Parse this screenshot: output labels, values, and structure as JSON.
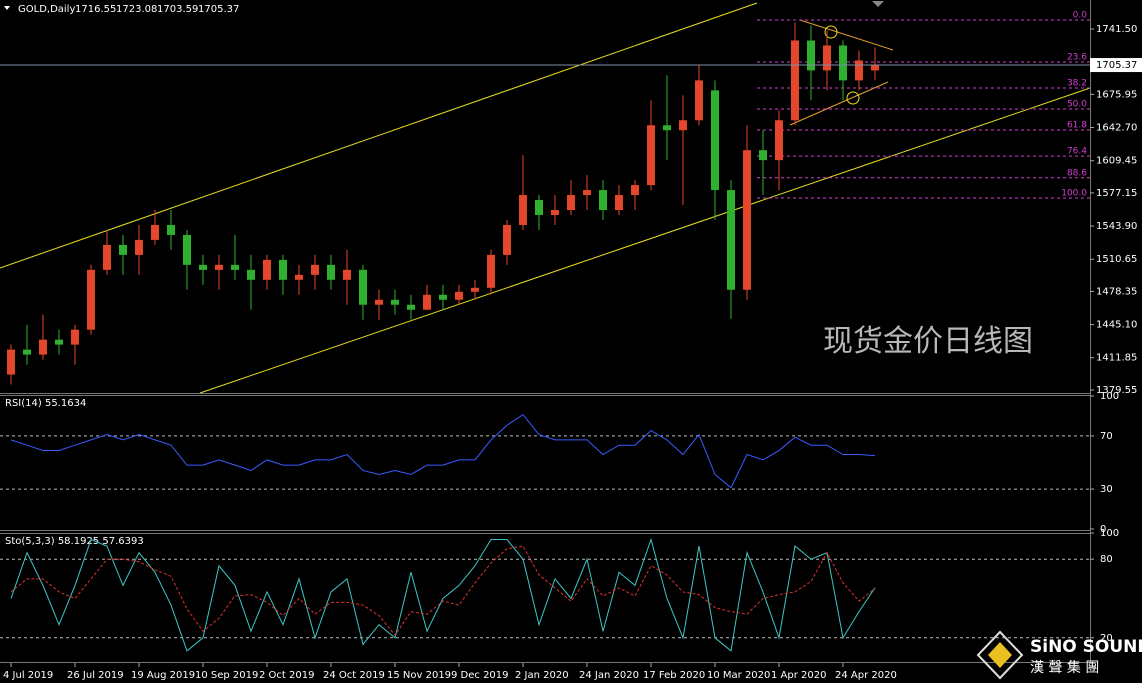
{
  "chart_data": [
    {
      "type": "candlestick",
      "title": "GOLD,Daily",
      "ohlc_header": [
        1716.55,
        1723.08,
        1703.59,
        1705.37
      ],
      "categories": [
        "4 Jul 2019",
        null,
        null,
        null,
        "26 Jul 2019",
        null,
        null,
        null,
        "19 Aug 2019",
        null,
        null,
        null,
        "10 Sep 2019",
        null,
        null,
        null,
        "2 Oct 2019",
        null,
        null,
        null,
        "24 Oct 2019",
        null,
        null,
        null,
        "15 Nov 2019",
        null,
        null,
        null,
        "9 Dec 2019",
        null,
        null,
        null,
        "2 Jan 2020",
        null,
        null,
        null,
        "24 Jan 2020",
        null,
        null,
        null,
        "17 Feb 2020",
        null,
        null,
        null,
        "10 Mar 2020",
        null,
        null,
        null,
        "1 Apr 2020",
        null,
        null,
        null,
        "24 Apr 2020",
        null,
        null
      ],
      "open": [
        1395,
        1420,
        1415,
        1430,
        1425,
        1440,
        1500,
        1525,
        1515,
        1530,
        1545,
        1535,
        1505,
        1500,
        1505,
        1500,
        1490,
        1510,
        1490,
        1495,
        1505,
        1490,
        1500,
        1465,
        1470,
        1465,
        1460,
        1475,
        1470,
        1478,
        1482,
        1515,
        1545,
        1570,
        1555,
        1560,
        1575,
        1580,
        1560,
        1575,
        1585,
        1645,
        1640,
        1650,
        1680,
        1580,
        1480,
        1620,
        1610,
        1650,
        1730,
        1700,
        1725,
        1690,
        1700
      ],
      "high": [
        1425,
        1445,
        1455,
        1440,
        1445,
        1505,
        1540,
        1535,
        1545,
        1560,
        1560,
        1540,
        1515,
        1515,
        1535,
        1515,
        1515,
        1515,
        1505,
        1515,
        1515,
        1520,
        1505,
        1480,
        1480,
        1475,
        1485,
        1485,
        1485,
        1490,
        1520,
        1550,
        1615,
        1575,
        1575,
        1590,
        1595,
        1590,
        1585,
        1590,
        1670,
        1695,
        1675,
        1705,
        1690,
        1590,
        1645,
        1640,
        1660,
        1748,
        1745,
        1740,
        1730,
        1720,
        1723.08
      ],
      "low": [
        1385,
        1405,
        1410,
        1415,
        1405,
        1435,
        1495,
        1495,
        1495,
        1525,
        1520,
        1480,
        1485,
        1480,
        1490,
        1460,
        1480,
        1475,
        1475,
        1480,
        1480,
        1465,
        1450,
        1450,
        1455,
        1450,
        1460,
        1460,
        1465,
        1470,
        1475,
        1505,
        1540,
        1540,
        1545,
        1555,
        1560,
        1550,
        1555,
        1560,
        1580,
        1610,
        1565,
        1645,
        1550,
        1451,
        1470,
        1575,
        1580,
        1645,
        1670,
        1680,
        1670,
        1680,
        1690
      ],
      "close": [
        1420,
        1415,
        1430,
        1425,
        1440,
        1500,
        1525,
        1515,
        1530,
        1545,
        1535,
        1505,
        1500,
        1505,
        1500,
        1490,
        1510,
        1490,
        1495,
        1505,
        1490,
        1500,
        1465,
        1470,
        1465,
        1460,
        1475,
        1470,
        1478,
        1482,
        1515,
        1545,
        1575,
        1555,
        1560,
        1575,
        1580,
        1560,
        1575,
        1585,
        1645,
        1640,
        1650,
        1690,
        1580,
        1480,
        1620,
        1610,
        1650,
        1730,
        1700,
        1725,
        1690,
        1710,
        1705.37
      ],
      "up_color": "#e5472d",
      "down_color": "#2fb02f",
      "ylim": [
        1376.5,
        1770.6
      ],
      "yticks": [
        {
          "value": 1741.5,
          "label": "1741.50"
        },
        {
          "value": 1675.95,
          "label": "1675.95"
        },
        {
          "value": 1642.7,
          "label": "1642.70"
        },
        {
          "value": 1609.45,
          "label": "1609.45"
        },
        {
          "value": 1577.15,
          "label": "1577.15"
        },
        {
          "value": 1543.9,
          "label": "1543.90"
        },
        {
          "value": 1510.65,
          "label": "1510.65"
        },
        {
          "value": 1478.35,
          "label": "1478.35"
        },
        {
          "value": 1445.1,
          "label": "1445.10"
        },
        {
          "value": 1411.85,
          "label": "1411.85"
        },
        {
          "value": 1379.55,
          "label": "1379.55"
        }
      ],
      "current_price": 1705.37,
      "fib": {
        "labels": [
          "0.0",
          "23.6",
          "38.2",
          "50.0",
          "61.8",
          "76.4",
          "88.6",
          "100.0"
        ],
        "prices": [
          1750.5,
          1708.4,
          1682.3,
          1661.3,
          1640.2,
          1614.1,
          1592.3,
          1572
        ],
        "color": "#d040d0"
      },
      "annotation": "现货金价日线图"
    },
    {
      "type": "line",
      "title": "RSI(14) 55.1634",
      "color": "#3a5cff",
      "values": [
        67,
        63,
        59,
        59,
        63,
        67,
        71,
        67,
        71,
        67,
        63,
        48,
        48,
        52,
        48,
        44,
        52,
        48,
        48,
        52,
        52,
        56,
        44,
        41,
        44,
        41,
        48,
        48,
        52,
        52,
        67,
        78,
        86,
        71,
        67,
        67,
        67,
        56,
        63,
        63,
        74,
        67,
        56,
        71,
        41,
        31,
        56,
        52,
        59,
        69,
        63,
        63,
        56,
        56,
        55.16
      ],
      "ylim": [
        0,
        100
      ],
      "yticks": [
        0,
        30,
        70,
        100
      ],
      "levels": [
        30,
        70
      ]
    },
    {
      "type": "line",
      "title": "Sto(5,3,3) 58.1925 57.6393",
      "series": [
        {
          "color": "#3cc8c8",
          "dashed": false,
          "values": [
            50,
            85,
            60,
            30,
            60,
            95,
            90,
            60,
            85,
            70,
            45,
            10,
            20,
            75,
            60,
            25,
            55,
            30,
            65,
            20,
            55,
            65,
            15,
            30,
            20,
            70,
            25,
            50,
            60,
            75,
            95,
            95,
            80,
            30,
            65,
            50,
            80,
            25,
            70,
            60,
            95,
            50,
            20,
            90,
            20,
            10,
            85,
            55,
            20,
            90,
            80,
            85,
            20,
            40,
            58.19
          ]
        },
        {
          "color": "#e03030",
          "dashed": true,
          "values": [
            55,
            65,
            65,
            55,
            50,
            65,
            80,
            80,
            78,
            72,
            67,
            42,
            25,
            35,
            52,
            53,
            47,
            37,
            50,
            38,
            47,
            47,
            45,
            37,
            22,
            40,
            38,
            48,
            45,
            62,
            77,
            88,
            90,
            68,
            58,
            48,
            65,
            52,
            58,
            52,
            75,
            68,
            55,
            53,
            43,
            40,
            38,
            50,
            53,
            55,
            63,
            85,
            62,
            48,
            57.64
          ]
        }
      ],
      "ylim": [
        0,
        100
      ],
      "yticks": [
        20,
        80,
        100
      ],
      "levels": [
        20,
        80
      ]
    }
  ],
  "logo": {
    "name": "SiNO SOUND",
    "tagline": "漢 聲 集 團"
  }
}
